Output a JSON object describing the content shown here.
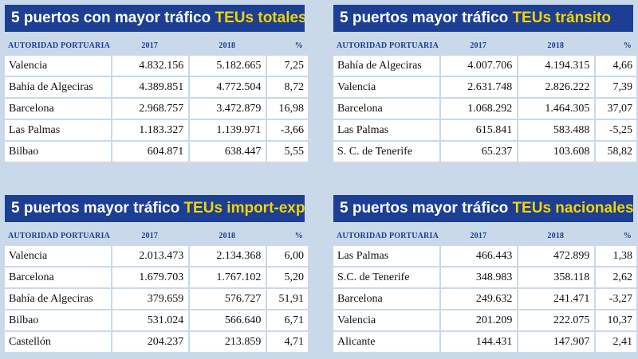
{
  "colors": {
    "background": "#c9d9ea",
    "title_bar": "#1c3f93",
    "title_text": "#ffffff",
    "title_highlight": "#f4d400",
    "header_text": "#1c3f93"
  },
  "panels": [
    {
      "title": "5 puertos con mayor tráfico ",
      "title_highlight": "TEUs totales",
      "headers": [
        "AUTORIDAD PORTUARIA",
        "2017",
        "2018",
        "%"
      ],
      "rows": [
        [
          "Valencia",
          "4.832.156",
          "5.182.665",
          "7,25"
        ],
        [
          "Bahía de Algeciras",
          "4.389.851",
          "4.772.504",
          "8,72"
        ],
        [
          "Barcelona",
          "2.968.757",
          "3.472.879",
          "16,98"
        ],
        [
          "Las Palmas",
          "1.183.327",
          "1.139.971",
          "-3,66"
        ],
        [
          "Bilbao",
          "604.871",
          "638.447",
          "5,55"
        ]
      ]
    },
    {
      "title": "5 puertos mayor tráfico ",
      "title_highlight": "TEUs tránsito",
      "headers": [
        "AUTORIDAD PORTUARIA",
        "2017",
        "2018",
        "%"
      ],
      "rows": [
        [
          "Bahía de Algeciras",
          "4.007.706",
          "4.194.315",
          "4,66"
        ],
        [
          "Valencia",
          "2.631.748",
          "2.826.222",
          "7,39"
        ],
        [
          "Barcelona",
          "1.068.292",
          "1.464.305",
          "37,07"
        ],
        [
          "Las Palmas",
          "615.841",
          "583.488",
          "-5,25"
        ],
        [
          "S. C. de Tenerife",
          "65.237",
          "103.608",
          "58,82"
        ]
      ]
    },
    {
      "title": "5 puertos mayor tráfico ",
      "title_highlight": "TEUs import-export",
      "headers": [
        "AUTORIDAD PORTUARIA",
        "2017",
        "2018",
        "%"
      ],
      "rows": [
        [
          "Valencia",
          "2.013.473",
          "2.134.368",
          "6,00"
        ],
        [
          "Barcelona",
          "1.679.703",
          "1.767.102",
          "5,20"
        ],
        [
          "Bahía de Algeciras",
          "379.659",
          "576.727",
          "51,91"
        ],
        [
          "Bilbao",
          "531.024",
          "566.640",
          "6,71"
        ],
        [
          "Castellón",
          "204.237",
          "213.859",
          "4,71"
        ]
      ]
    },
    {
      "title": "5 puertos mayor tráfico ",
      "title_highlight": "TEUs nacionales",
      "headers": [
        "AUTORIDAD PORTUARIA",
        "2017",
        "2018",
        "%"
      ],
      "rows": [
        [
          "Las Palmas",
          "466.443",
          "472.899",
          "1,38"
        ],
        [
          "S.C. de Tenerife",
          "348.983",
          "358.118",
          "2,62"
        ],
        [
          "Barcelona",
          "249.632",
          "241.471",
          "-3,27"
        ],
        [
          "Valencia",
          "201.209",
          "222.075",
          "10,37"
        ],
        [
          "Alicante",
          "144.431",
          "147.907",
          "2,41"
        ]
      ]
    }
  ]
}
